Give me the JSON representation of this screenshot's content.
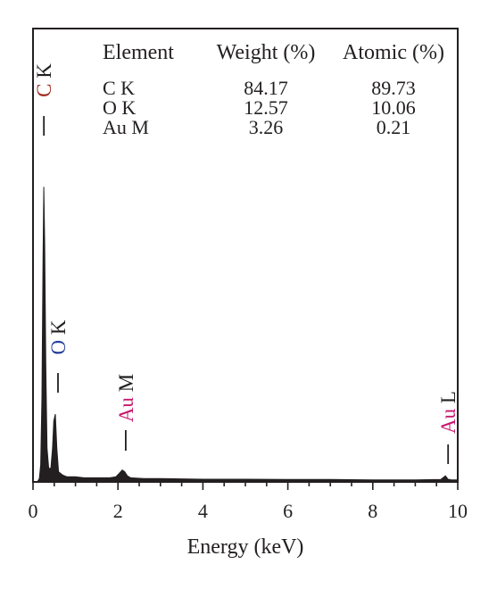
{
  "chart_data": {
    "type": "line",
    "title": "",
    "xlabel": "Energy (keV)",
    "ylabel": "",
    "xlim": [
      0,
      10
    ],
    "ylim": [
      0,
      1
    ],
    "x_ticks": [
      0,
      2,
      4,
      6,
      8,
      10
    ],
    "x_minor_step": 0.5,
    "grid": false,
    "series": [
      {
        "points": [
          [
            0.0,
            0.0
          ],
          [
            0.1,
            0.0
          ],
          [
            0.15,
            0.01
          ],
          [
            0.18,
            0.05
          ],
          [
            0.21,
            0.25
          ],
          [
            0.235,
            0.65
          ],
          [
            0.255,
            0.87
          ],
          [
            0.275,
            0.7
          ],
          [
            0.3,
            0.35
          ],
          [
            0.33,
            0.1
          ],
          [
            0.37,
            0.04
          ],
          [
            0.42,
            0.04
          ],
          [
            0.46,
            0.1
          ],
          [
            0.49,
            0.18
          ],
          [
            0.525,
            0.2
          ],
          [
            0.56,
            0.1
          ],
          [
            0.6,
            0.03
          ],
          [
            0.7,
            0.02
          ],
          [
            0.8,
            0.015
          ],
          [
            1.0,
            0.015
          ],
          [
            1.2,
            0.012
          ],
          [
            1.5,
            0.012
          ],
          [
            1.8,
            0.012
          ],
          [
            1.95,
            0.015
          ],
          [
            2.03,
            0.025
          ],
          [
            2.1,
            0.035
          ],
          [
            2.16,
            0.03
          ],
          [
            2.22,
            0.018
          ],
          [
            2.3,
            0.012
          ],
          [
            2.6,
            0.01
          ],
          [
            3.0,
            0.01
          ],
          [
            4.0,
            0.008
          ],
          [
            5.0,
            0.008
          ],
          [
            6.0,
            0.007
          ],
          [
            7.0,
            0.007
          ],
          [
            8.0,
            0.006
          ],
          [
            9.0,
            0.006
          ],
          [
            9.6,
            0.007
          ],
          [
            9.71,
            0.018
          ],
          [
            9.77,
            0.008
          ],
          [
            9.85,
            0.006
          ],
          [
            10.0,
            0.006
          ]
        ],
        "color": "#231f20"
      }
    ],
    "peaks": [
      {
        "label": "C K",
        "energy": 0.277,
        "color": "#a02a1e"
      },
      {
        "label": "O K",
        "energy": 0.525,
        "color": "#23409a"
      },
      {
        "label": "Au M",
        "energy": 2.12,
        "color": "#c8186d"
      },
      {
        "label": "Au L",
        "energy": 9.71,
        "color": "#c8186d"
      }
    ],
    "table": {
      "headers": [
        "Element",
        "Weight (%)",
        "Atomic (%)"
      ],
      "rows": [
        [
          "C K",
          "84.17",
          "89.73"
        ],
        [
          "O K",
          "12.57",
          "10.06"
        ],
        [
          "Au M",
          "3.26",
          "0.21"
        ]
      ]
    }
  }
}
